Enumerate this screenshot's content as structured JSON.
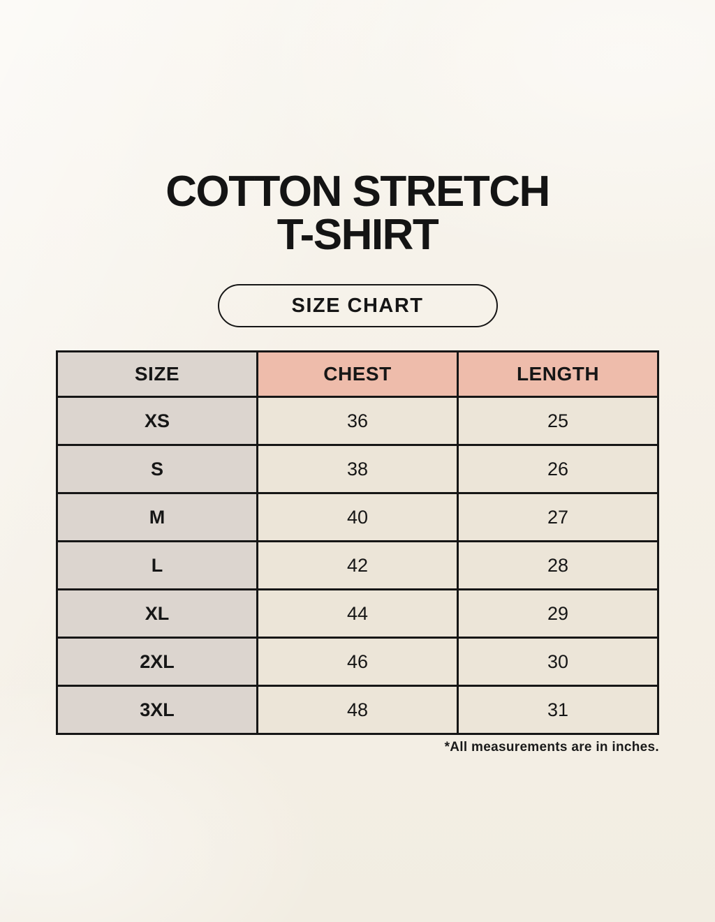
{
  "page": {
    "title_line1": "COTTON STRETCH",
    "title_line2": "T-SHIRT",
    "size_chart_button_label": "SIZE CHART",
    "footnote": "*All measurements are in inches."
  },
  "table": {
    "headers": [
      "SIZE",
      "CHEST",
      "LENGTH"
    ],
    "rows": [
      {
        "size": "XS",
        "chest": "36",
        "length": "25"
      },
      {
        "size": "S",
        "chest": "38",
        "length": "26"
      },
      {
        "size": "M",
        "chest": "40",
        "length": "27"
      },
      {
        "size": "L",
        "chest": "42",
        "length": "28"
      },
      {
        "size": "XL",
        "chest": "44",
        "length": "29"
      },
      {
        "size": "2XL",
        "chest": "46",
        "length": "30"
      },
      {
        "size": "3XL",
        "chest": "48",
        "length": "31"
      }
    ]
  },
  "colors": {
    "background": "#f5f0e7",
    "header_accent": "#eebcab",
    "size_column_gray": "#dcd5cf",
    "cell_cream": "#ece5d8",
    "border": "#161616",
    "text": "#161616"
  }
}
